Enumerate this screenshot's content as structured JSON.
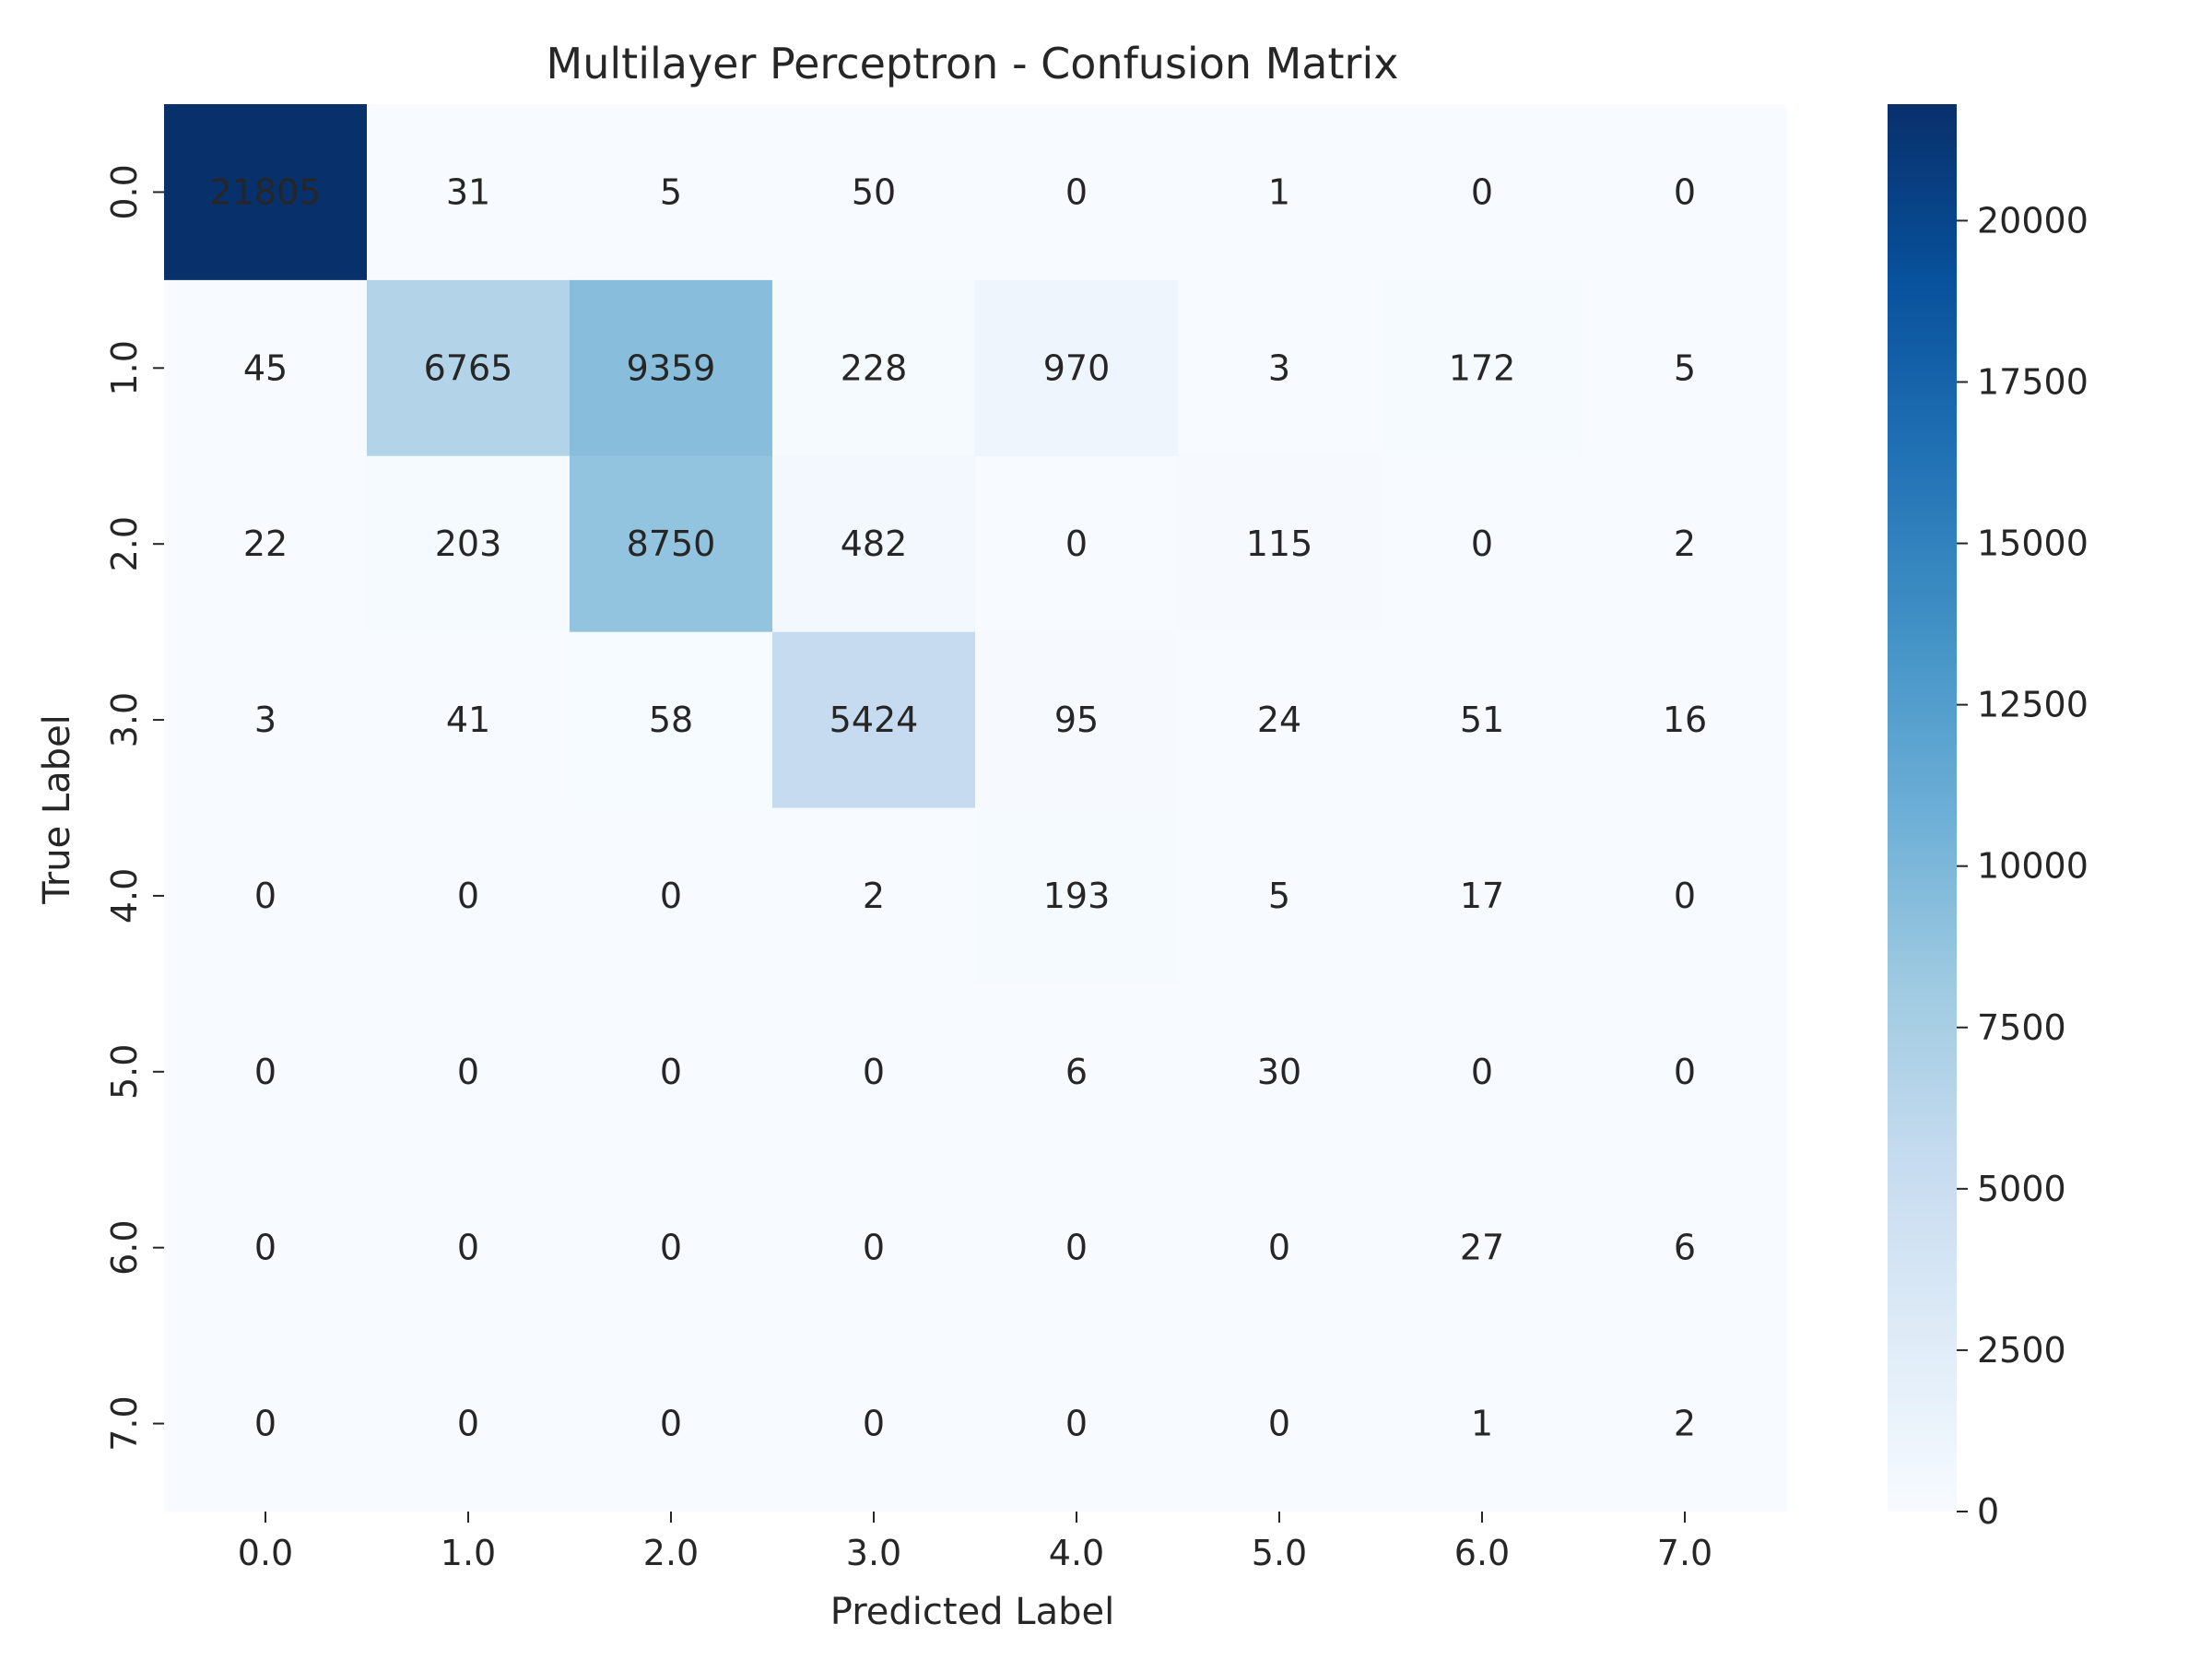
{
  "chart_data": {
    "type": "heatmap",
    "title": "Multilayer Perceptron - Confusion Matrix",
    "xlabel": "Predicted Label",
    "ylabel": "True Label",
    "x_categories": [
      "0.0",
      "1.0",
      "2.0",
      "3.0",
      "4.0",
      "5.0",
      "6.0",
      "7.0"
    ],
    "y_categories": [
      "0.0",
      "1.0",
      "2.0",
      "3.0",
      "4.0",
      "5.0",
      "6.0",
      "7.0"
    ],
    "matrix": [
      [
        21805,
        31,
        5,
        50,
        0,
        1,
        0,
        0
      ],
      [
        45,
        6765,
        9359,
        228,
        970,
        3,
        172,
        5
      ],
      [
        22,
        203,
        8750,
        482,
        0,
        115,
        0,
        2
      ],
      [
        3,
        41,
        58,
        5424,
        95,
        24,
        51,
        16
      ],
      [
        0,
        0,
        0,
        2,
        193,
        5,
        17,
        0
      ],
      [
        0,
        0,
        0,
        0,
        6,
        30,
        0,
        0
      ],
      [
        0,
        0,
        0,
        0,
        0,
        0,
        27,
        6
      ],
      [
        0,
        0,
        0,
        0,
        0,
        0,
        1,
        2
      ]
    ],
    "colormap": "Blues",
    "colorbar": {
      "range": [
        0,
        21805
      ],
      "ticks": [
        0,
        2500,
        5000,
        7500,
        10000,
        12500,
        15000,
        17500,
        20000
      ],
      "tick_labels": [
        "0",
        "2500",
        "5000",
        "7500",
        "10000",
        "12500",
        "15000",
        "17500",
        "20000"
      ]
    },
    "grid": false,
    "legend": "colorbar-right"
  },
  "colors": {
    "text_dark": "#262626",
    "text_light": "#ffffff"
  }
}
